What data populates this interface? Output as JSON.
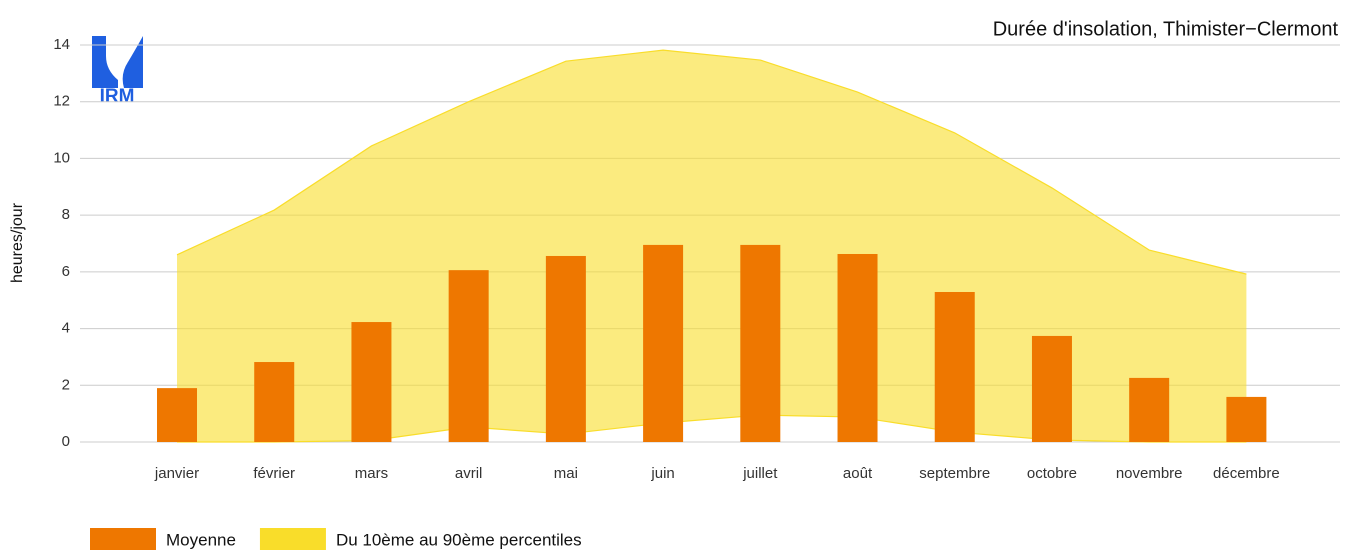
{
  "chart_data": {
    "type": "bar-band",
    "title": "Durée d'insolation, Thimister−Clermont",
    "y_label": "heures/jour",
    "logo_text": "IRM",
    "categories": [
      "janvier",
      "février",
      "mars",
      "avril",
      "mai",
      "juin",
      "juillet",
      "août",
      "septembre",
      "octobre",
      "novembre",
      "décembre"
    ],
    "series": [
      {
        "name": "Moyenne",
        "color": "#ee7700",
        "values": [
          1.9,
          2.82,
          4.23,
          6.06,
          6.56,
          6.95,
          6.95,
          6.63,
          5.29,
          3.74,
          2.26,
          1.59
        ]
      },
      {
        "name": "Du 10ème au 90ème percentiles",
        "color": "#f9dd2a",
        "low": [
          0,
          0,
          0.05,
          0.53,
          0.28,
          0.67,
          0.95,
          0.88,
          0.35,
          0.07,
          0,
          0
        ],
        "high": [
          6.6,
          8.18,
          10.44,
          12.0,
          13.43,
          13.82,
          13.47,
          12.34,
          10.9,
          8.96,
          6.77,
          5.92
        ]
      }
    ],
    "ylim": [
      0,
      14
    ],
    "yticks": [
      0,
      2,
      4,
      6,
      8,
      10,
      12,
      14
    ],
    "grid": true
  }
}
